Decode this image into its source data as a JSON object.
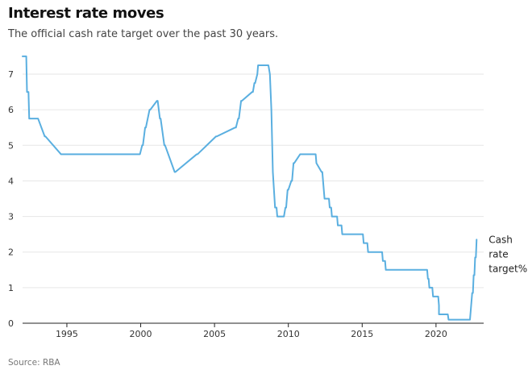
{
  "title": "Interest rate moves",
  "subtitle": "The official cash rate target over the past 30 years.",
  "source": "Source: RBA",
  "chart_data": {
    "type": "line",
    "title": "Interest rate moves",
    "subtitle": "The official cash rate target over the past 30 years.",
    "xlabel": "",
    "ylabel": "",
    "xlim": [
      1992.0,
      2022.9
    ],
    "ylim": [
      0,
      7.6
    ],
    "x_ticks": [
      1995,
      2000,
      2005,
      2010,
      2015,
      2020
    ],
    "y_ticks": [
      0,
      1,
      2,
      3,
      4,
      5,
      6,
      7
    ],
    "grid": "horizontal",
    "colors": {
      "line": "#5aafe0",
      "grid": "#e6e6e6",
      "axis": "#222222"
    },
    "series": [
      {
        "label_lines": [
          "Cash",
          "rate",
          "target%"
        ],
        "x": [
          1992.0,
          1992.25,
          1992.3,
          1992.4,
          1992.45,
          1992.5,
          1992.55,
          1993.0,
          1993.05,
          1993.5,
          1993.55,
          1994.6,
          1994.65,
          1994.75,
          1994.8,
          1994.95,
          1995.0,
          1996.55,
          1996.6,
          1996.8,
          1996.85,
          1997.2,
          1997.25,
          1997.6,
          1997.65,
          1998.8,
          1998.85,
          1999.9,
          1999.95,
          2000.1,
          2000.15,
          2000.3,
          2000.35,
          2000.6,
          2000.65,
          2001.1,
          2001.15,
          2001.3,
          2001.35,
          2001.6,
          2001.65,
          2002.3,
          2002.35,
          2003.8,
          2003.85,
          2005.1,
          2005.15,
          2006.4,
          2006.45,
          2006.6,
          2006.65,
          2006.8,
          2006.85,
          2007.55,
          2007.6,
          2007.7,
          2007.75,
          2007.9,
          2007.95,
          2008.65,
          2008.75,
          2008.85,
          2008.95,
          2009.1,
          2009.2,
          2009.25,
          2009.7,
          2009.8,
          2009.85,
          2009.95,
          2010.0,
          2010.2,
          2010.25,
          2010.35,
          2010.4,
          2010.8,
          2010.85,
          2011.85,
          2011.9,
          2012.25,
          2012.3,
          2012.4,
          2012.45,
          2012.75,
          2012.8,
          2012.9,
          2012.95,
          2013.3,
          2013.35,
          2013.6,
          2013.65,
          2015.05,
          2015.1,
          2015.35,
          2015.4,
          2016.35,
          2016.4,
          2016.55,
          2016.6,
          2019.4,
          2019.45,
          2019.5,
          2019.55,
          2019.75,
          2019.8,
          2020.15,
          2020.2,
          2020.2,
          2020.25,
          2020.8,
          2020.85,
          2022.3,
          2022.35,
          2022.45,
          2022.5,
          2022.55,
          2022.6,
          2022.65,
          2022.7,
          2022.75
        ],
        "y": [
          7.5,
          7.5,
          6.5,
          6.5,
          5.75,
          5.75,
          5.75,
          5.75,
          5.75,
          5.25,
          5.25,
          4.75,
          4.75,
          4.75,
          4.75,
          4.75,
          4.75,
          4.75,
          4.75,
          4.75,
          4.75,
          4.75,
          4.75,
          4.75,
          4.75,
          4.75,
          4.75,
          4.75,
          4.75,
          5.0,
          5.0,
          5.5,
          5.5,
          6.0,
          6.0,
          6.25,
          6.25,
          5.75,
          5.75,
          5.0,
          5.0,
          4.25,
          4.25,
          4.75,
          4.75,
          5.25,
          5.25,
          5.5,
          5.5,
          5.75,
          5.75,
          6.25,
          6.25,
          6.5,
          6.5,
          6.75,
          6.75,
          7.0,
          7.25,
          7.25,
          7.0,
          6.0,
          4.25,
          3.25,
          3.25,
          3.0,
          3.0,
          3.25,
          3.25,
          3.75,
          3.75,
          4.0,
          4.0,
          4.5,
          4.5,
          4.75,
          4.75,
          4.75,
          4.5,
          4.25,
          4.25,
          3.75,
          3.5,
          3.5,
          3.25,
          3.25,
          3.0,
          3.0,
          2.75,
          2.75,
          2.5,
          2.5,
          2.25,
          2.25,
          2.0,
          2.0,
          1.75,
          1.75,
          1.5,
          1.5,
          1.25,
          1.25,
          1.0,
          1.0,
          0.75,
          0.75,
          0.5,
          0.25,
          0.25,
          0.25,
          0.1,
          0.1,
          0.35,
          0.85,
          0.85,
          1.35,
          1.35,
          1.85,
          1.85,
          2.35
        ]
      }
    ]
  }
}
